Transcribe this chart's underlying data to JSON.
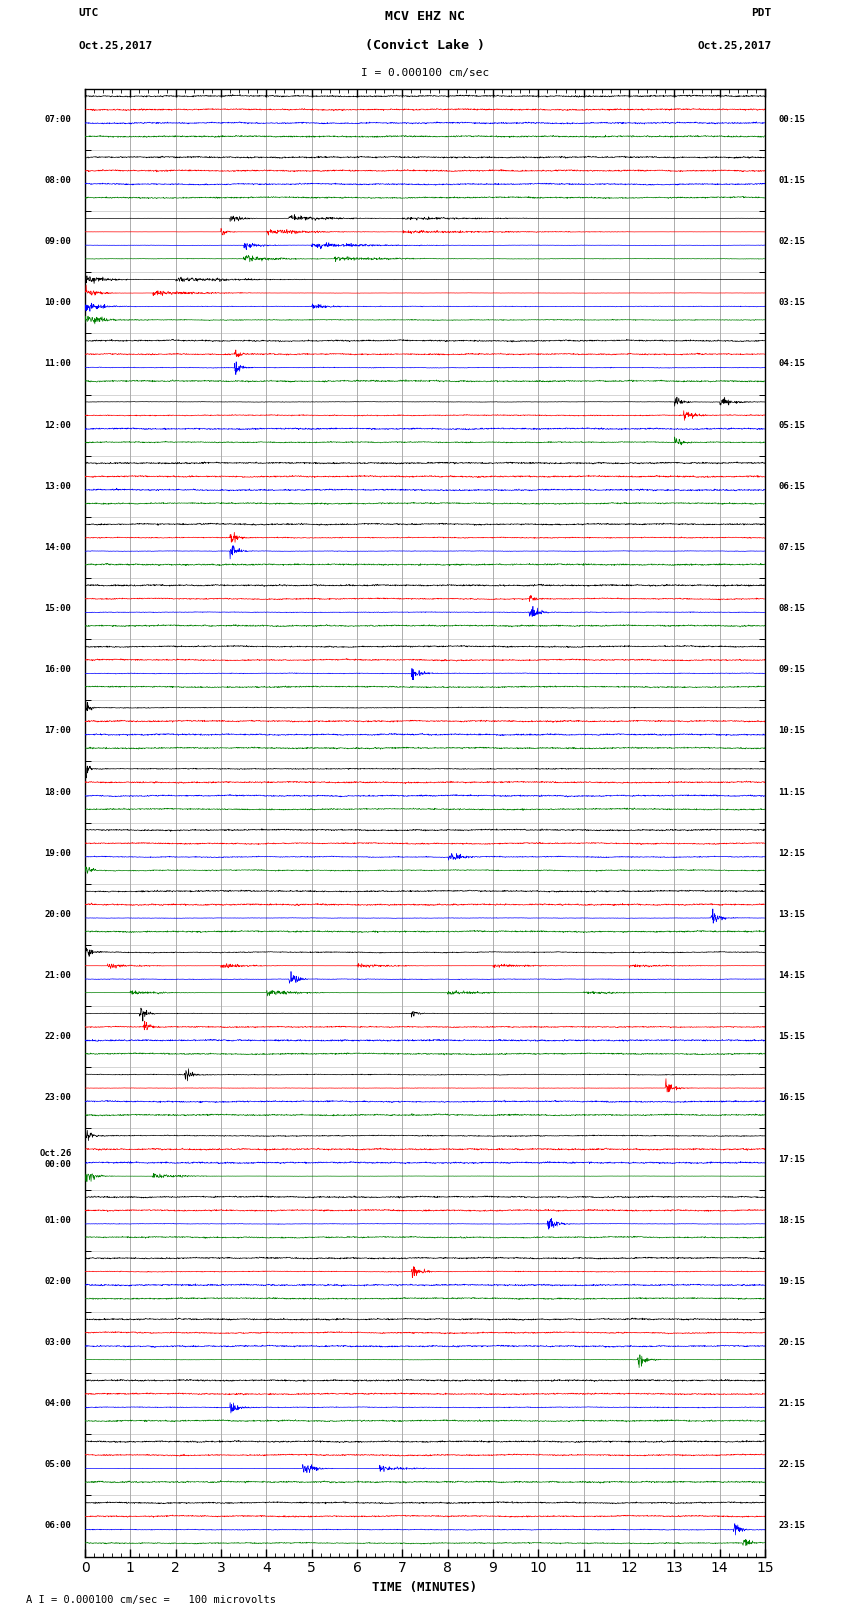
{
  "title_line1": "MCV EHZ NC",
  "title_line2": "(Convict Lake )",
  "scale_text": "I = 0.000100 cm/sec",
  "bottom_text": "A I = 0.000100 cm/sec =   100 microvolts",
  "xlabel": "TIME (MINUTES)",
  "left_label_top": "UTC",
  "left_label_bot": "Oct.25,2017",
  "right_label_top": "PDT",
  "right_label_bot": "Oct.25,2017",
  "left_times": [
    "07:00",
    "08:00",
    "09:00",
    "10:00",
    "11:00",
    "12:00",
    "13:00",
    "14:00",
    "15:00",
    "16:00",
    "17:00",
    "18:00",
    "19:00",
    "20:00",
    "21:00",
    "22:00",
    "23:00",
    "Oct.26\n00:00",
    "01:00",
    "02:00",
    "03:00",
    "04:00",
    "05:00",
    "06:00"
  ],
  "right_times": [
    "00:15",
    "01:15",
    "02:15",
    "03:15",
    "04:15",
    "05:15",
    "06:15",
    "07:15",
    "08:15",
    "09:15",
    "10:15",
    "11:15",
    "12:15",
    "13:15",
    "14:15",
    "15:15",
    "16:15",
    "17:15",
    "18:15",
    "19:15",
    "20:15",
    "21:15",
    "22:15",
    "23:15"
  ],
  "n_rows": 24,
  "n_traces_per_row": 4,
  "trace_colors": [
    "black",
    "red",
    "blue",
    "green"
  ],
  "xmin": 0,
  "xmax": 15,
  "bg_color": "#ffffff",
  "grid_color": "#aaaaaa",
  "grid_color_v": "#888888",
  "fig_width": 8.5,
  "fig_height": 16.13
}
